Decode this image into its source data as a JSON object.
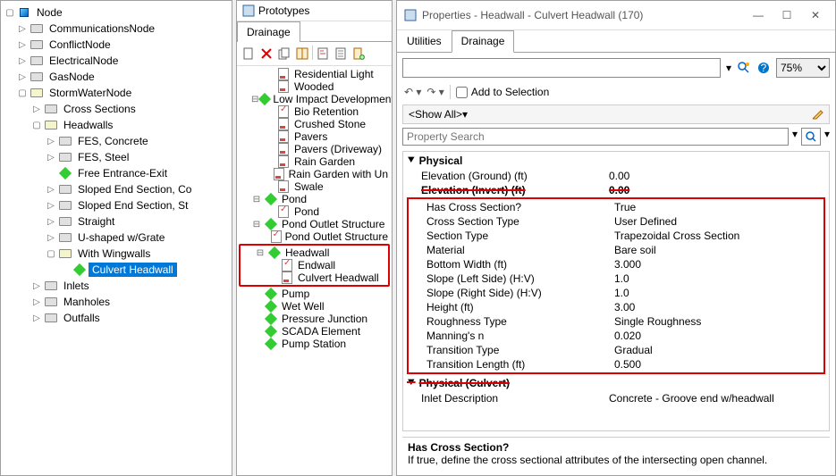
{
  "leftTree": {
    "root": "Node",
    "items": [
      {
        "label": "CommunicationsNode",
        "indent": 1,
        "toggle": "▷",
        "icon": "folder"
      },
      {
        "label": "ConflictNode",
        "indent": 1,
        "toggle": "▷",
        "icon": "folder"
      },
      {
        "label": "ElectricalNode",
        "indent": 1,
        "toggle": "▷",
        "icon": "folder"
      },
      {
        "label": "GasNode",
        "indent": 1,
        "toggle": "▷",
        "icon": "folder"
      },
      {
        "label": "StormWaterNode",
        "indent": 1,
        "toggle": "▢",
        "icon": "folder-open"
      },
      {
        "label": "Cross Sections",
        "indent": 2,
        "toggle": "▷",
        "icon": "folder"
      },
      {
        "label": "Headwalls",
        "indent": 2,
        "toggle": "▢",
        "icon": "folder-open"
      },
      {
        "label": "FES, Concrete",
        "indent": 3,
        "toggle": "▷",
        "icon": "folder"
      },
      {
        "label": "FES, Steel",
        "indent": 3,
        "toggle": "▷",
        "icon": "folder"
      },
      {
        "label": "Free Entrance-Exit",
        "indent": 3,
        "toggle": "",
        "icon": "diamond"
      },
      {
        "label": "Sloped End Section, Co",
        "indent": 3,
        "toggle": "▷",
        "icon": "folder"
      },
      {
        "label": "Sloped End Section, St",
        "indent": 3,
        "toggle": "▷",
        "icon": "folder"
      },
      {
        "label": "Straight",
        "indent": 3,
        "toggle": "▷",
        "icon": "folder"
      },
      {
        "label": "U-shaped w/Grate",
        "indent": 3,
        "toggle": "▷",
        "icon": "folder"
      },
      {
        "label": "With Wingwalls",
        "indent": 3,
        "toggle": "▢",
        "icon": "folder-open"
      },
      {
        "label": "Culvert Headwall",
        "indent": 4,
        "toggle": "",
        "icon": "diamond",
        "selected": true
      },
      {
        "label": "Inlets",
        "indent": 2,
        "toggle": "▷",
        "icon": "folder"
      },
      {
        "label": "Manholes",
        "indent": 2,
        "toggle": "▷",
        "icon": "folder"
      },
      {
        "label": "Outfalls",
        "indent": 2,
        "toggle": "▷",
        "icon": "folder"
      }
    ]
  },
  "mid": {
    "title": "Prototypes",
    "tab": "Drainage",
    "tree": [
      {
        "label": "Residential Light",
        "indent": 2,
        "icon": "page-red"
      },
      {
        "label": "Wooded",
        "indent": 2,
        "icon": "page-red"
      },
      {
        "label": "Low Impact Development",
        "indent": 1,
        "toggle": "⊟",
        "icon": "diamond"
      },
      {
        "label": "Bio Retention",
        "indent": 2,
        "icon": "page-chk"
      },
      {
        "label": "Crushed Stone",
        "indent": 2,
        "icon": "page-red"
      },
      {
        "label": "Pavers",
        "indent": 2,
        "icon": "page-red"
      },
      {
        "label": "Pavers (Driveway)",
        "indent": 2,
        "icon": "page-red"
      },
      {
        "label": "Rain Garden",
        "indent": 2,
        "icon": "page-red"
      },
      {
        "label": "Rain Garden with Un",
        "indent": 2,
        "icon": "page-red"
      },
      {
        "label": "Swale",
        "indent": 2,
        "icon": "page-red"
      },
      {
        "label": "Pond",
        "indent": 1,
        "toggle": "⊟",
        "icon": "diamond"
      },
      {
        "label": "Pond",
        "indent": 2,
        "icon": "page-chk"
      },
      {
        "label": "Pond Outlet Structure",
        "indent": 1,
        "toggle": "⊟",
        "icon": "diamond"
      },
      {
        "label": "Pond Outlet Structure",
        "indent": 2,
        "icon": "page-chk"
      }
    ],
    "highlight": [
      {
        "label": "Headwall",
        "indent": 1,
        "toggle": "⊟",
        "icon": "diamond"
      },
      {
        "label": "Endwall",
        "indent": 2,
        "icon": "page-chk"
      },
      {
        "label": "Culvert Headwall",
        "indent": 2,
        "icon": "page-red"
      }
    ],
    "tree2": [
      {
        "label": "Pump",
        "indent": 1,
        "toggle": "",
        "icon": "diamond"
      },
      {
        "label": "Wet Well",
        "indent": 1,
        "toggle": "",
        "icon": "diamond"
      },
      {
        "label": "Pressure Junction",
        "indent": 1,
        "toggle": "",
        "icon": "diamond"
      },
      {
        "label": "SCADA Element",
        "indent": 1,
        "toggle": "",
        "icon": "diamond"
      },
      {
        "label": "Pump Station",
        "indent": 1,
        "toggle": "",
        "icon": "diamond"
      }
    ]
  },
  "props": {
    "title": "Properties - Headwall - Culvert Headwall (170)",
    "tabs": [
      "Utilities",
      "Drainage"
    ],
    "activeTab": "Drainage",
    "zoom": "75%",
    "addToSel": "Add to Selection",
    "showAll": "<Show All>",
    "searchPH": "Property Search",
    "cat1": "Physical",
    "rows1": [
      {
        "k": "Elevation (Ground) (ft)",
        "v": "0.00"
      },
      {
        "k": "Elevation (Invert) (ft)",
        "v": "0.00",
        "struck": true
      }
    ],
    "rowsHL": [
      {
        "k": "Has Cross Section?",
        "v": "True"
      },
      {
        "k": "Cross Section Type",
        "v": "User Defined"
      },
      {
        "k": "Section Type",
        "v": "Trapezoidal Cross Section"
      },
      {
        "k": "Material",
        "v": "Bare soil"
      },
      {
        "k": "Bottom Width (ft)",
        "v": "3.000"
      },
      {
        "k": "Slope (Left Side) (H:V)",
        "v": "1.0"
      },
      {
        "k": "Slope (Right Side) (H:V)",
        "v": "1.0"
      },
      {
        "k": "Height (ft)",
        "v": "3.00"
      },
      {
        "k": "Roughness Type",
        "v": "Single Roughness"
      },
      {
        "k": "Manning's n",
        "v": "0.020"
      },
      {
        "k": "Transition Type",
        "v": "Gradual"
      },
      {
        "k": "Transition Length (ft)",
        "v": "0.500"
      }
    ],
    "cat2": "Physical (Culvert)",
    "rows2": [
      {
        "k": "Inlet Description",
        "v": "Concrete - Groove end w/headwall"
      }
    ],
    "descTitle": "Has Cross Section?",
    "descBody": "If true, define the cross sectional attributes of the intersecting open channel."
  }
}
